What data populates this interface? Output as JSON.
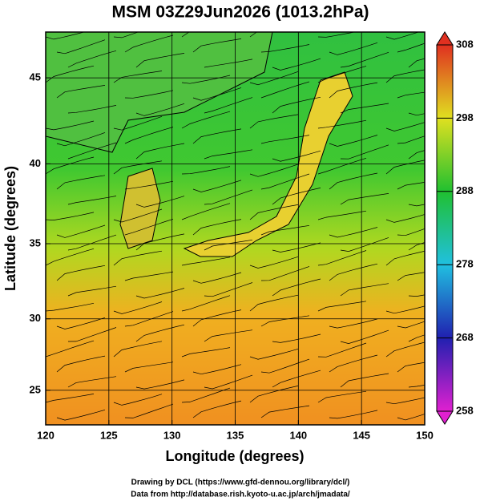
{
  "chart_data": {
    "type": "map",
    "title": "MSM 03Z29Jun2026 (1013.2hPa)",
    "xlabel": "Longitude (degrees)",
    "ylabel": "Latitude  (degrees)",
    "projection": "mercator",
    "xlim": [
      120,
      150
    ],
    "xticks": [
      120,
      125,
      130,
      135,
      140,
      145,
      150
    ],
    "ylim": [
      22.5,
      47.5
    ],
    "yticks": [
      25,
      30,
      35,
      40,
      45
    ],
    "grid": true,
    "colorbar": {
      "lim": [
        258,
        308
      ],
      "ticks": [
        258,
        268,
        278,
        288,
        298,
        308
      ],
      "colors": [
        "#e020d0",
        "#2020b0",
        "#20c0e0",
        "#20c030",
        "#e0e020",
        "#e03020"
      ]
    },
    "credits": [
      "Drawing by DCL (https://www.gfd-dennou.org/library/dcl/)",
      "Data from http://database.rish.kyoto-u.ac.jp/arch/jmadata/"
    ]
  }
}
